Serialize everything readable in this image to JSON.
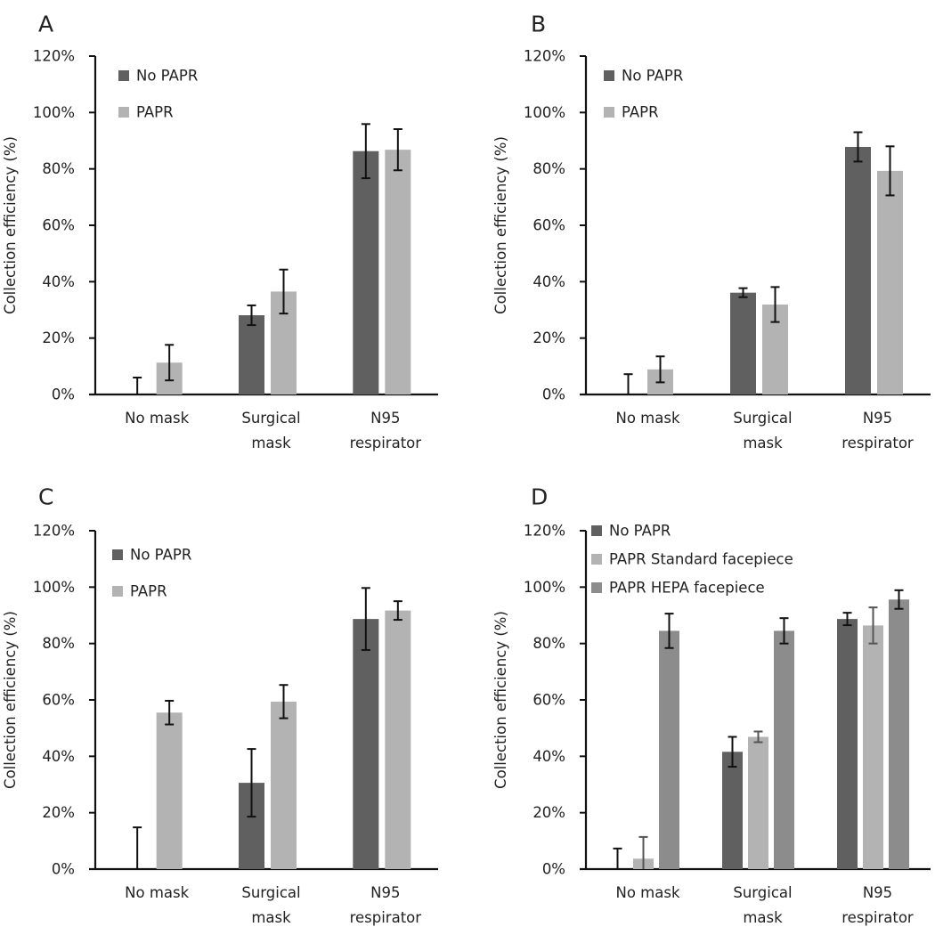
{
  "figure": {
    "description": "Collection efficiency of aerosol by mask type, with and without PAPR"
  },
  "colors": {
    "no_papr": "#606060",
    "papr": "#b3b3b3",
    "papr_standard": "#b3b3b3",
    "papr_hepa": "#8c8c8c",
    "error_bar": "#111111",
    "error_bar_light": "#555555",
    "axis": "#111111"
  },
  "chart_data": [
    {
      "panel": "A",
      "type": "bar",
      "title": "",
      "xlabel": "",
      "ylabel": "Collection efficiency (%)",
      "ylim": [
        0,
        120
      ],
      "yticks": [
        "0%",
        "20%",
        "40%",
        "60%",
        "80%",
        "100%",
        "120%"
      ],
      "ytick_values": [
        0,
        20,
        40,
        60,
        80,
        100,
        120
      ],
      "grid": false,
      "legend_position": "top-left",
      "categories": [
        [
          "No mask"
        ],
        [
          "Surgical",
          "mask"
        ],
        [
          "N95",
          "respirator"
        ]
      ],
      "series": [
        {
          "name": "No PAPR",
          "color_key": "no_papr",
          "values": [
            0,
            28.1,
            86.3
          ],
          "errors": [
            6.0,
            3.5,
            9.6
          ]
        },
        {
          "name": "PAPR",
          "color_key": "papr",
          "values": [
            11.3,
            36.5,
            86.8
          ],
          "errors": [
            6.3,
            7.8,
            7.3
          ]
        }
      ]
    },
    {
      "panel": "B",
      "type": "bar",
      "title": "",
      "xlabel": "",
      "ylabel": "Collection efficiency (%)",
      "ylim": [
        0,
        120
      ],
      "yticks": [
        "0%",
        "20%",
        "40%",
        "60%",
        "80%",
        "100%",
        "120%"
      ],
      "ytick_values": [
        0,
        20,
        40,
        60,
        80,
        100,
        120
      ],
      "grid": false,
      "legend_position": "top-left",
      "categories": [
        [
          "No mask"
        ],
        [
          "Surgical",
          "mask"
        ],
        [
          "N95",
          "respirator"
        ]
      ],
      "series": [
        {
          "name": "No PAPR",
          "color_key": "no_papr",
          "values": [
            0,
            36.1,
            87.8
          ],
          "errors": [
            7.2,
            1.6,
            5.2
          ]
        },
        {
          "name": "PAPR",
          "color_key": "papr",
          "values": [
            8.9,
            31.9,
            79.3
          ],
          "errors": [
            4.6,
            6.2,
            8.7
          ]
        }
      ]
    },
    {
      "panel": "C",
      "type": "bar",
      "title": "",
      "xlabel": "",
      "ylabel": "Collection efficiency (%)",
      "ylim": [
        0,
        120
      ],
      "yticks": [
        "0%",
        "20%",
        "40%",
        "60%",
        "80%",
        "100%",
        "120%"
      ],
      "ytick_values": [
        0,
        20,
        40,
        60,
        80,
        100,
        120
      ],
      "grid": false,
      "legend_position": "top-left",
      "categories": [
        [
          "No mask"
        ],
        [
          "Surgical",
          "mask"
        ],
        [
          "N95",
          "respirator"
        ]
      ],
      "series": [
        {
          "name": "No PAPR",
          "color_key": "no_papr",
          "values": [
            0,
            30.6,
            88.7
          ],
          "errors": [
            14.8,
            12.0,
            11.0
          ]
        },
        {
          "name": "PAPR",
          "color_key": "papr",
          "values": [
            55.5,
            59.4,
            91.7
          ],
          "errors": [
            4.2,
            5.9,
            3.3
          ]
        }
      ]
    },
    {
      "panel": "D",
      "type": "bar",
      "title": "",
      "xlabel": "",
      "ylabel": "Collection efficiency (%)",
      "ylim": [
        0,
        120
      ],
      "yticks": [
        "0%",
        "20%",
        "40%",
        "60%",
        "80%",
        "100%",
        "120%"
      ],
      "ytick_values": [
        0,
        20,
        40,
        60,
        80,
        100,
        120
      ],
      "grid": false,
      "legend_position": "top-left",
      "categories": [
        [
          "No mask"
        ],
        [
          "Surgical",
          "mask"
        ],
        [
          "N95",
          "respirator"
        ]
      ],
      "series": [
        {
          "name": "No PAPR",
          "color_key": "no_papr",
          "values": [
            0,
            41.6,
            88.7
          ],
          "errors": [
            7.3,
            5.3,
            2.2
          ]
        },
        {
          "name": "PAPR Standard facepiece",
          "color_key": "papr_standard",
          "error_color_key": "error_bar_light",
          "values": [
            3.7,
            46.9,
            86.4
          ],
          "errors": [
            7.7,
            1.9,
            6.4
          ]
        },
        {
          "name": "PAPR HEPA facepiece",
          "color_key": "papr_hepa",
          "values": [
            84.5,
            84.5,
            95.6
          ],
          "errors": [
            6.1,
            4.5,
            3.3
          ]
        }
      ]
    }
  ]
}
